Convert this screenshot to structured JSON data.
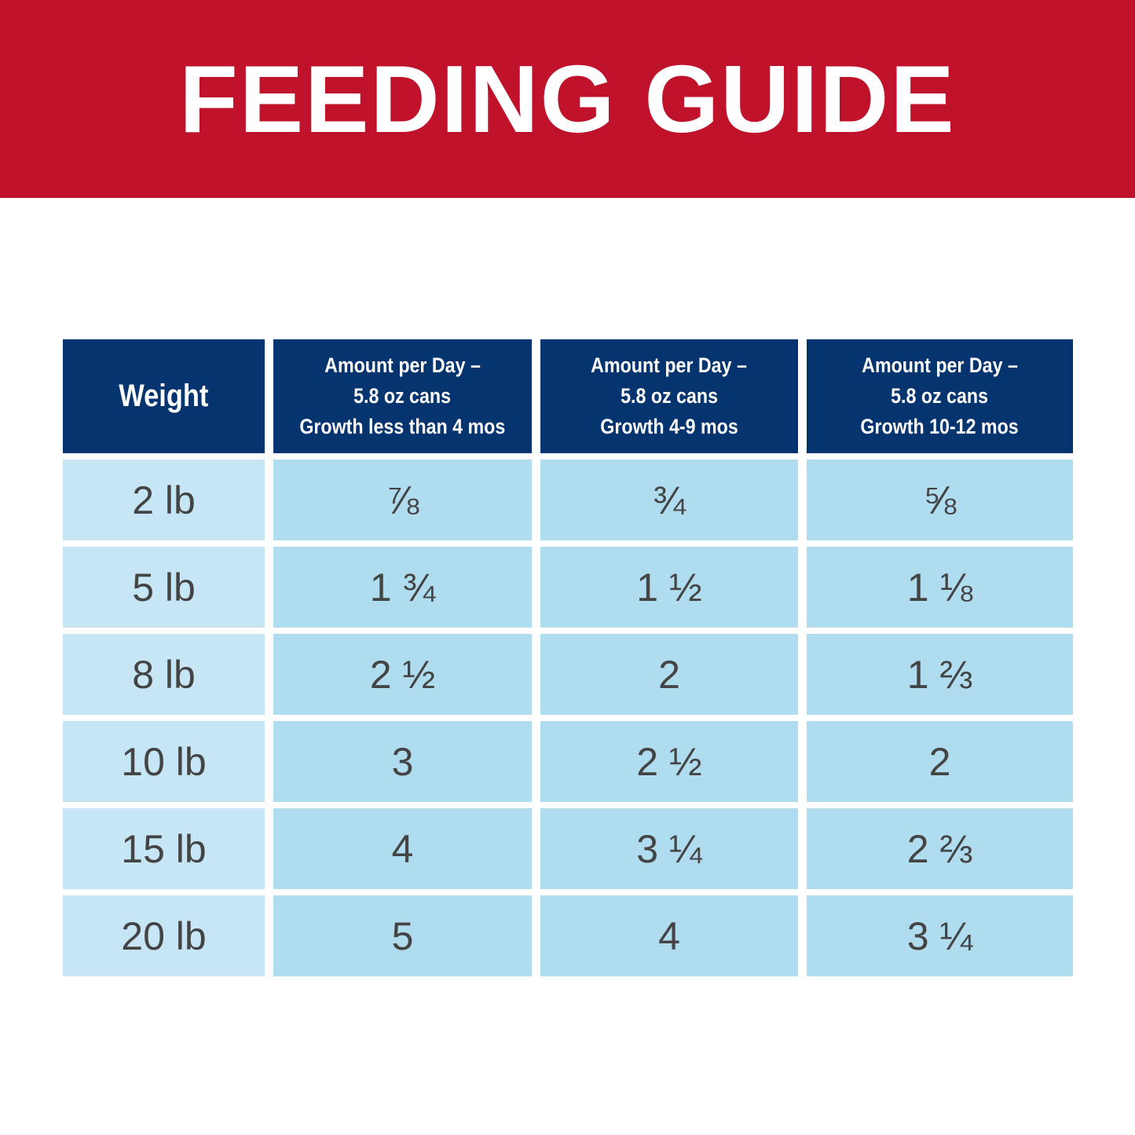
{
  "header": {
    "title": "FEEDING GUIDE"
  },
  "table": {
    "columns": [
      [
        "Weight"
      ],
      [
        "Amount per Day –",
        "5.8 oz cans",
        "Growth less than 4 mos"
      ],
      [
        "Amount per Day –",
        "5.8 oz cans",
        "Growth 4-9 mos"
      ],
      [
        "Amount per Day –",
        "5.8 oz cans",
        "Growth 10-12 mos"
      ]
    ],
    "rows": [
      [
        "2 lb",
        "⅞",
        "¾",
        "⅝"
      ],
      [
        "5 lb",
        "1 ¾",
        "1 ½",
        "1 ⅛"
      ],
      [
        "8 lb",
        "2 ½",
        "2",
        "1 ⅔"
      ],
      [
        "10 lb",
        "3",
        "2 ½",
        "2"
      ],
      [
        "15 lb",
        "4",
        "3 ¼",
        "2 ⅔"
      ],
      [
        "20 lb",
        "5",
        "4",
        "3 ¼"
      ]
    ]
  }
}
